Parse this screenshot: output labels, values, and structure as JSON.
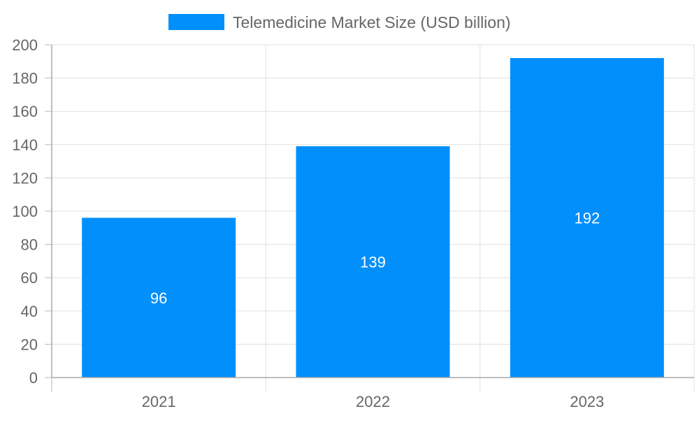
{
  "chart_data": {
    "type": "bar",
    "title": "",
    "xlabel": "",
    "ylabel": "",
    "categories": [
      "2021",
      "2022",
      "2023"
    ],
    "series": [
      {
        "name": "Telemedicine Market Size (USD billion)",
        "values": [
          96,
          139,
          192
        ],
        "color": "#008ffb"
      }
    ],
    "data_labels": [
      "96",
      "139",
      "192"
    ],
    "ylim": [
      0,
      200
    ],
    "yticks": [
      "0",
      "20",
      "40",
      "60",
      "80",
      "100",
      "120",
      "140",
      "160",
      "180",
      "200"
    ],
    "grid": true,
    "legend_position": "top"
  }
}
